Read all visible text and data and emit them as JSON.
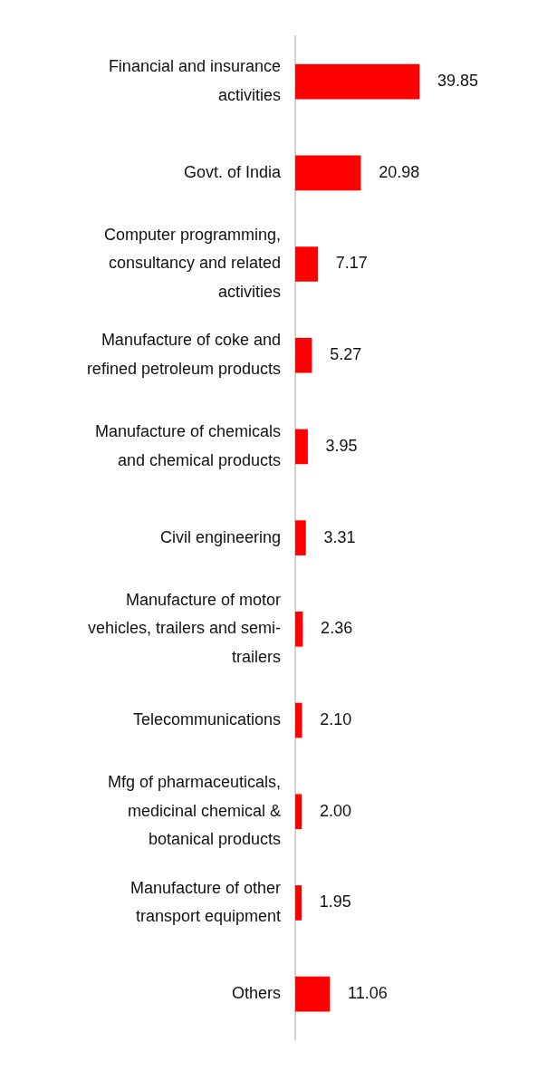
{
  "chart_data": {
    "type": "bar",
    "orientation": "horizontal",
    "categories": [
      "Financial and insurance activities",
      "Govt. of India",
      "Computer programming, consultancy and related activities",
      "Manufacture of coke and refined petroleum products",
      "Manufacture of chemicals and chemical products",
      "Civil engineering",
      "Manufacture of motor vehicles, trailers and semi-trailers",
      "Telecommunications",
      "Mfg of pharmaceuticals, medicinal chemical & botanical products",
      "Manufacture of other transport equipment",
      "Others"
    ],
    "values": [
      39.85,
      20.98,
      7.17,
      5.27,
      3.95,
      3.31,
      2.36,
      2.1,
      2.0,
      1.95,
      11.06
    ],
    "value_labels": [
      "39.85",
      "20.98",
      "7.17",
      "5.27",
      "3.95",
      "3.31",
      "2.36",
      "2.10",
      "2.00",
      "1.95",
      "11.06"
    ],
    "color": "#ff0000"
  }
}
